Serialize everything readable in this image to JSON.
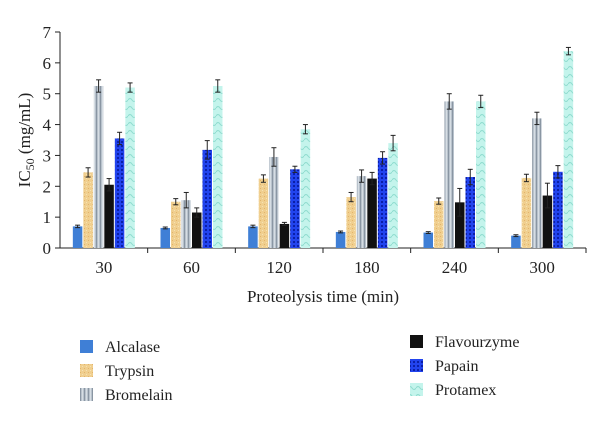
{
  "chart_data": {
    "type": "bar",
    "xlabel": "Proteolysis time (min)",
    "ylabel": "IC50 (mg/mL)",
    "ylabel_parts": {
      "main": "IC",
      "sub": "50",
      "unit": " (mg/mL)"
    },
    "ylim": [
      0,
      7
    ],
    "yticks": [
      0,
      1,
      2,
      3,
      4,
      5,
      6,
      7
    ],
    "categories": [
      "30",
      "60",
      "120",
      "180",
      "240",
      "300"
    ],
    "grid": false,
    "legend_position": "bottom",
    "series": [
      {
        "name": "Alcalase",
        "color": "#3f7fd6",
        "pattern": "solid",
        "values": [
          0.7,
          0.65,
          0.7,
          0.52,
          0.5,
          0.4
        ],
        "errors": [
          0.04,
          0.03,
          0.04,
          0.03,
          0.03,
          0.03
        ]
      },
      {
        "name": "Trypsin",
        "color": "#f0cf8f",
        "pattern": "speckle",
        "values": [
          2.45,
          1.5,
          2.25,
          1.65,
          1.52,
          2.27
        ],
        "errors": [
          0.15,
          0.1,
          0.12,
          0.15,
          0.1,
          0.12
        ]
      },
      {
        "name": "Bromelain",
        "color": "#a9b4bf",
        "pattern": "stripe",
        "values": [
          5.25,
          1.55,
          2.95,
          2.33,
          4.75,
          4.2
        ],
        "errors": [
          0.2,
          0.25,
          0.3,
          0.2,
          0.25,
          0.2
        ]
      },
      {
        "name": "Flavourzyme",
        "color": "#111111",
        "pattern": "solid",
        "values": [
          2.05,
          1.15,
          0.78,
          2.25,
          1.48,
          1.7
        ],
        "errors": [
          0.2,
          0.15,
          0.05,
          0.2,
          0.45,
          0.4
        ]
      },
      {
        "name": "Papain",
        "color": "#1f3fe8",
        "pattern": "dots",
        "values": [
          3.55,
          3.18,
          2.55,
          2.92,
          2.3,
          2.47
        ],
        "errors": [
          0.2,
          0.3,
          0.1,
          0.2,
          0.25,
          0.2
        ]
      },
      {
        "name": "Protamex",
        "color": "#bff3ea",
        "pattern": "wave",
        "values": [
          5.2,
          5.25,
          3.85,
          3.4,
          4.75,
          6.38
        ],
        "errors": [
          0.15,
          0.2,
          0.15,
          0.25,
          0.2,
          0.12
        ]
      }
    ]
  }
}
